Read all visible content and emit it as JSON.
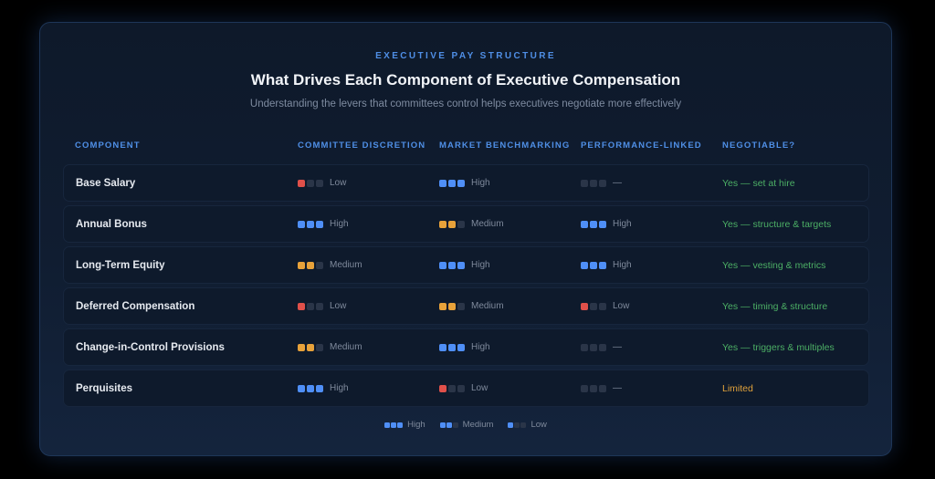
{
  "header": {
    "eyebrow": "EXECUTIVE PAY STRUCTURE",
    "title": "What Drives Each Component of Executive Compensation",
    "subtitle": "Understanding the levers that committees control helps executives negotiate more effectively"
  },
  "colors": {
    "high": "#4f8ff7",
    "medium": "#e8a23a",
    "low": "#e0504a",
    "empty": "#2a3548",
    "negotiable_yes": "#4caf65",
    "negotiable_limited": "#e0a23b",
    "accent": "#4f8fe6"
  },
  "table": {
    "columns": [
      "COMPONENT",
      "COMMITTEE DISCRETION",
      "MARKET BENCHMARKING",
      "PERFORMANCE-LINKED",
      "NEGOTIABLE?"
    ],
    "rows": [
      {
        "component": "Base Salary",
        "discretion": {
          "level": "low",
          "filled": 1,
          "label": "Low"
        },
        "benchmarking": {
          "level": "high",
          "filled": 3,
          "label": "High"
        },
        "performance": {
          "level": "none",
          "filled": 0,
          "label": "—"
        },
        "negotiable": {
          "type": "yes",
          "label": "Yes — set at hire"
        }
      },
      {
        "component": "Annual Bonus",
        "discretion": {
          "level": "high",
          "filled": 3,
          "label": "High"
        },
        "benchmarking": {
          "level": "medium",
          "filled": 2,
          "label": "Medium"
        },
        "performance": {
          "level": "high",
          "filled": 3,
          "label": "High"
        },
        "negotiable": {
          "type": "yes",
          "label": "Yes — structure & targets"
        }
      },
      {
        "component": "Long-Term Equity",
        "discretion": {
          "level": "medium",
          "filled": 2,
          "label": "Medium"
        },
        "benchmarking": {
          "level": "high",
          "filled": 3,
          "label": "High"
        },
        "performance": {
          "level": "high",
          "filled": 3,
          "label": "High"
        },
        "negotiable": {
          "type": "yes",
          "label": "Yes — vesting & metrics"
        }
      },
      {
        "component": "Deferred Compensation",
        "discretion": {
          "level": "low",
          "filled": 1,
          "label": "Low"
        },
        "benchmarking": {
          "level": "medium",
          "filled": 2,
          "label": "Medium"
        },
        "performance": {
          "level": "low",
          "filled": 1,
          "label": "Low"
        },
        "negotiable": {
          "type": "yes",
          "label": "Yes — timing & structure"
        }
      },
      {
        "component": "Change-in-Control Provisions",
        "discretion": {
          "level": "medium",
          "filled": 2,
          "label": "Medium"
        },
        "benchmarking": {
          "level": "high",
          "filled": 3,
          "label": "High"
        },
        "performance": {
          "level": "none",
          "filled": 0,
          "label": "—"
        },
        "negotiable": {
          "type": "yes",
          "label": "Yes — triggers & multiples"
        }
      },
      {
        "component": "Perquisites",
        "discretion": {
          "level": "high",
          "filled": 3,
          "label": "High"
        },
        "benchmarking": {
          "level": "low",
          "filled": 1,
          "label": "Low"
        },
        "performance": {
          "level": "none",
          "filled": 0,
          "label": "—"
        },
        "negotiable": {
          "type": "limited",
          "label": "Limited"
        }
      }
    ]
  },
  "legend": [
    {
      "filled": 3,
      "label": "High"
    },
    {
      "filled": 2,
      "label": "Medium"
    },
    {
      "filled": 1,
      "label": "Low"
    }
  ]
}
